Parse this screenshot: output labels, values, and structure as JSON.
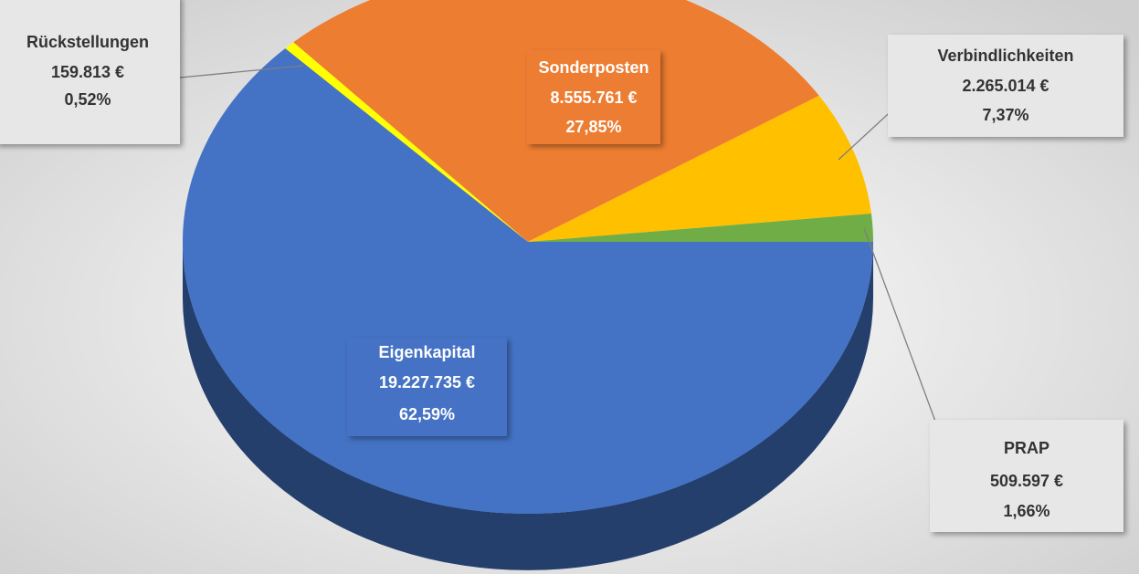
{
  "chart_data": {
    "type": "pie3d",
    "categories": [
      "Eigenkapital",
      "Rückstellungen",
      "Sonderposten",
      "Verbindlichkeiten",
      "PRAP"
    ],
    "values": [
      19227735,
      159813,
      8555761,
      2265014,
      509597
    ],
    "value_labels": [
      "19.227.735 €",
      "159.813 €",
      "8.555.761 €",
      "2.265.014 €",
      "509.597 €"
    ],
    "percent_labels": [
      "62,59%",
      "0,52%",
      "27,85%",
      "7,37%",
      "1,66%"
    ],
    "colors": [
      "#4472c4",
      "#ffff00",
      "#ed7d31",
      "#ffc000",
      "#70ad47"
    ]
  }
}
